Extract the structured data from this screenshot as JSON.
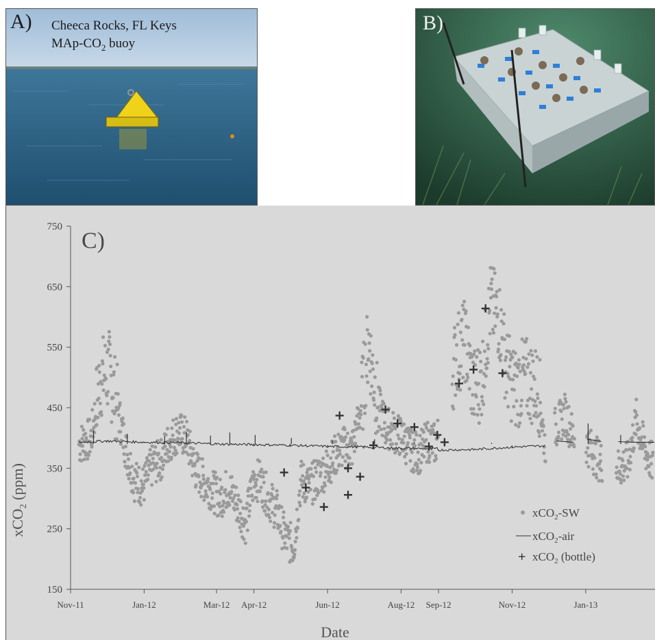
{
  "panel_a": {
    "letter": "A)",
    "line1": "Cheeca Rocks, FL Keys",
    "line2_prefix": "MAp-CO",
    "line2_sub": "2",
    "line2_suffix": " buoy",
    "colors": {
      "sky": "#a9c4dd",
      "sea": "#2b5d7e",
      "buoy": "#f3d51a"
    }
  },
  "panel_b": {
    "letter": "B)",
    "colors": {
      "water": "#2f5a45",
      "rack": "#cfd8da",
      "tag": "#2f7fd6"
    }
  },
  "chart_data": {
    "type": "scatter",
    "panel_letter": "C)",
    "xlabel": "Date",
    "ylabel_parts": {
      "prefix": "xCO",
      "sub": "2",
      "suffix": " (ppm)"
    },
    "ylim": [
      150,
      750
    ],
    "yticks": [
      150,
      250,
      350,
      450,
      550,
      650,
      750
    ],
    "xlim": [
      "2011-11-01",
      "2013-02-28"
    ],
    "xticks": [
      {
        "label": "Nov-11",
        "date": "2011-11-01"
      },
      {
        "label": "Jan-12",
        "date": "2012-01-01"
      },
      {
        "label": "Mar-12",
        "date": "2012-03-01"
      },
      {
        "label": "Apr-12",
        "date": "2012-04-01"
      },
      {
        "label": "Jun-12",
        "date": "2012-06-01"
      },
      {
        "label": "Aug-12",
        "date": "2012-08-01"
      },
      {
        "label": "Sep-12",
        "date": "2012-09-01"
      },
      {
        "label": "Nov-12",
        "date": "2012-11-01"
      },
      {
        "label": "Jan-13",
        "date": "2013-01-01"
      }
    ],
    "legend_position": "lower-right",
    "colors": {
      "sw": "#9a9a9a",
      "air": "#333333",
      "bottle": "#333333",
      "background": "#d9d9d9"
    },
    "series": [
      {
        "name": "xCO2-SW",
        "legend": {
          "prefix": "xCO",
          "sub": "2",
          "suffix": "-SW"
        },
        "style": "dots",
        "trend": [
          [
            "2011-11-08",
            390
          ],
          [
            "2011-11-18",
            400
          ],
          [
            "2011-11-26",
            500
          ],
          [
            "2011-12-03",
            510
          ],
          [
            "2011-12-10",
            450
          ],
          [
            "2011-12-17",
            380
          ],
          [
            "2011-12-24",
            330
          ],
          [
            "2011-12-31",
            320
          ],
          [
            "2012-01-08",
            355
          ],
          [
            "2012-01-15",
            365
          ],
          [
            "2012-01-22",
            395
          ],
          [
            "2012-01-29",
            410
          ],
          [
            "2012-02-05",
            400
          ],
          [
            "2012-02-12",
            350
          ],
          [
            "2012-02-19",
            330
          ],
          [
            "2012-02-26",
            315
          ],
          [
            "2012-03-04",
            300
          ],
          [
            "2012-03-11",
            320
          ],
          [
            "2012-03-18",
            290
          ],
          [
            "2012-03-25",
            260
          ],
          [
            "2012-04-01",
            330
          ],
          [
            "2012-04-06",
            330
          ],
          [
            "2012-04-13",
            300
          ],
          [
            "2012-04-20",
            280
          ],
          [
            "2012-04-27",
            235
          ],
          [
            "2012-05-04",
            220
          ],
          [
            "2012-05-10",
            330
          ],
          [
            "2012-05-17",
            320
          ],
          [
            "2012-05-24",
            335
          ],
          [
            "2012-05-31",
            350
          ],
          [
            "2012-06-07",
            370
          ],
          [
            "2012-06-14",
            385
          ],
          [
            "2012-06-21",
            380
          ],
          [
            "2012-06-28",
            440
          ],
          [
            "2012-07-05",
            560
          ],
          [
            "2012-07-12",
            460
          ],
          [
            "2012-07-19",
            420
          ],
          [
            "2012-07-26",
            410
          ],
          [
            "2012-08-02",
            400
          ],
          [
            "2012-08-09",
            380
          ],
          [
            "2012-08-16",
            375
          ],
          [
            "2012-08-23",
            395
          ],
          [
            "2012-08-30",
            390
          ],
          [
            "2012-09-16",
            540
          ],
          [
            "2012-09-23",
            560
          ],
          [
            "2012-09-30",
            480
          ],
          [
            "2012-10-07",
            500
          ],
          [
            "2012-10-14",
            620
          ],
          [
            "2012-10-21",
            600
          ],
          [
            "2012-10-28",
            510
          ],
          [
            "2012-11-04",
            480
          ],
          [
            "2012-11-11",
            500
          ],
          [
            "2012-11-18",
            490
          ],
          [
            "2012-11-23",
            480
          ],
          [
            "2012-11-28",
            390
          ],
          [
            "2012-12-08",
            420
          ],
          [
            "2012-12-15",
            440
          ],
          [
            "2012-12-22",
            400
          ],
          [
            "2013-01-02",
            390
          ],
          [
            "2013-01-09",
            370
          ],
          [
            "2013-01-14",
            360
          ],
          [
            "2013-01-28",
            350
          ],
          [
            "2013-02-05",
            360
          ],
          [
            "2013-02-12",
            430
          ],
          [
            "2013-02-19",
            380
          ],
          [
            "2013-02-26",
            355
          ]
        ],
        "gaps": [
          [
            "2012-09-01",
            "2012-09-12"
          ],
          [
            "2012-11-29",
            "2012-12-06"
          ],
          [
            "2012-12-23",
            "2013-01-01"
          ],
          [
            "2013-01-15",
            "2013-01-26"
          ]
        ]
      },
      {
        "name": "xCO2-air",
        "legend": {
          "prefix": "xCO",
          "sub": "2",
          "suffix": "-air"
        },
        "style": "line",
        "points": [
          [
            "2011-11-08",
            393
          ],
          [
            "2011-12-01",
            395
          ],
          [
            "2012-01-01",
            393
          ],
          [
            "2012-02-01",
            392
          ],
          [
            "2012-03-01",
            390
          ],
          [
            "2012-04-01",
            389
          ],
          [
            "2012-05-01",
            388
          ],
          [
            "2012-06-01",
            386
          ],
          [
            "2012-07-01",
            385
          ],
          [
            "2012-08-01",
            383
          ],
          [
            "2012-08-31",
            382
          ],
          [
            "2012-09-01",
            380
          ],
          [
            "2012-10-01",
            381
          ],
          [
            "2012-11-01",
            385
          ],
          [
            "2012-11-28",
            387
          ]
        ],
        "segments_after_gap": [
          [
            [
              "2012-12-08",
              395
            ],
            [
              "2012-12-22",
              393
            ]
          ],
          [
            [
              "2013-01-02",
              398
            ],
            [
              "2013-01-12",
              395
            ],
            [
              "2013-01-14",
              394
            ]
          ],
          [
            [
              "2013-01-28",
              394
            ],
            [
              "2013-02-10",
              393
            ],
            [
              "2013-02-27",
              393
            ]
          ]
        ],
        "spikes": [
          [
            "2011-11-20",
            412
          ],
          [
            "2011-12-18",
            407
          ],
          [
            "2012-01-18",
            403
          ],
          [
            "2012-02-05",
            410
          ],
          [
            "2012-02-25",
            404
          ],
          [
            "2012-03-12",
            409
          ],
          [
            "2012-04-02",
            405
          ],
          [
            "2012-05-02",
            400
          ],
          [
            "2012-06-05",
            396
          ],
          [
            "2012-07-10",
            398
          ],
          [
            "2012-08-12",
            393
          ],
          [
            "2012-09-20",
            390
          ],
          [
            "2012-10-15",
            392
          ],
          [
            "2013-01-03",
            424
          ],
          [
            "2013-01-30",
            405
          ]
        ]
      },
      {
        "name": "xCO2 (bottle)",
        "legend": {
          "prefix": "xCO",
          "sub": "2",
          "suffix": " (bottle)"
        },
        "style": "cross",
        "points": [
          [
            "2012-04-26",
            343
          ],
          [
            "2012-05-14",
            318
          ],
          [
            "2012-05-29",
            286
          ],
          [
            "2012-06-11",
            437
          ],
          [
            "2012-06-18",
            350
          ],
          [
            "2012-06-18",
            306
          ],
          [
            "2012-06-28",
            336
          ],
          [
            "2012-07-09",
            388
          ],
          [
            "2012-07-19",
            447
          ],
          [
            "2012-07-29",
            424
          ],
          [
            "2012-08-12",
            418
          ],
          [
            "2012-08-24",
            386
          ],
          [
            "2012-08-31",
            405
          ],
          [
            "2012-09-06",
            393
          ],
          [
            "2012-09-18",
            490
          ],
          [
            "2012-09-30",
            513
          ],
          [
            "2012-10-10",
            614
          ],
          [
            "2012-10-24",
            507
          ]
        ]
      }
    ]
  }
}
